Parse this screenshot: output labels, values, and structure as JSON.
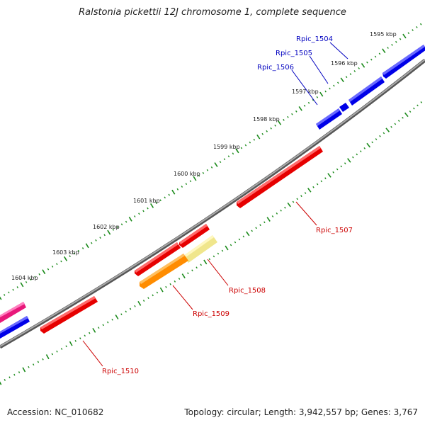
{
  "title": "Ralstonia pickettii 12J chromosome 1, complete sequence",
  "footer": {
    "accession": "Accession: NC_010682",
    "summary": "Topology: circular; Length: 3,942,557 bp; Genes: 3,767"
  },
  "colors": {
    "backbone": "#808080",
    "tick": "#1a8a1a",
    "forward_gene": "#0000e8",
    "reverse_gene": "#e60000",
    "orange_gene": "#ff8c00",
    "pale_gene": "#f0e68c",
    "magenta_gene": "#e8187a",
    "forward_label": "#0000c0",
    "reverse_label": "#cc0000"
  },
  "kbp_labels": [
    "1595 kbp",
    "1596 kbp",
    "1597 kbp",
    "1598 kbp",
    "1599 kbp",
    "1600 kbp",
    "1601 kbp",
    "1602 kbp",
    "1603 kbp",
    "1604 kbp"
  ],
  "gene_labels": {
    "rpic_1504": "Rpic_1504",
    "rpic_1505": "Rpic_1505",
    "rpic_1506": "Rpic_1506",
    "rpic_1507": "Rpic_1507",
    "rpic_1508": "Rpic_1508",
    "rpic_1509": "Rpic_1509",
    "rpic_1510": "Rpic_1510"
  }
}
